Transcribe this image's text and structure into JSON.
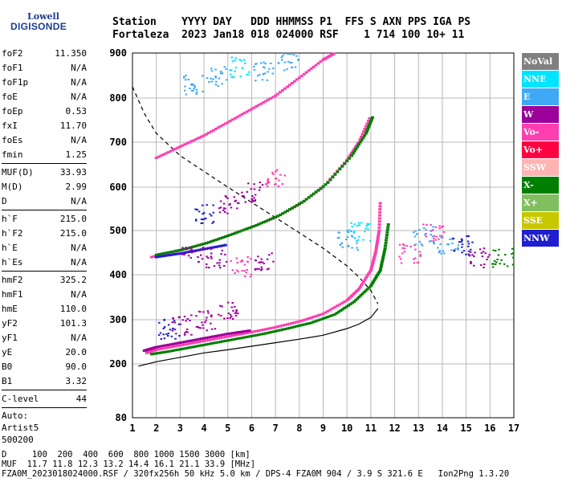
{
  "logo": {
    "line1": "Lowell",
    "line2": "DIGISONDE"
  },
  "header": {
    "line1": "Station    YYYY DAY   DDD HHMMSS P1  FFS S AXN PPS IGA PS",
    "line2": "Fortaleza  2023 Jan18 018 024000 RSF    1 714 100 10+ 11"
  },
  "params": {
    "group1": [
      {
        "label": "foF2",
        "value": "11.350"
      },
      {
        "label": "foF1",
        "value": "N/A"
      },
      {
        "label": "foF1p",
        "value": "N/A"
      },
      {
        "label": "foE",
        "value": "N/A"
      },
      {
        "label": "foEp",
        "value": "0.53"
      },
      {
        "label": "fxI",
        "value": "11.70"
      },
      {
        "label": "foEs",
        "value": "N/A"
      },
      {
        "label": "fmin",
        "value": "1.25"
      }
    ],
    "group2": [
      {
        "label": "MUF(D)",
        "value": "33.93"
      },
      {
        "label": "M(D)",
        "value": "2.99"
      },
      {
        "label": "D",
        "value": "N/A"
      }
    ],
    "group3": [
      {
        "label": "h`F",
        "value": "215.0"
      },
      {
        "label": "h`F2",
        "value": "215.0"
      },
      {
        "label": "h`E",
        "value": "N/A"
      },
      {
        "label": "h`Es",
        "value": "N/A"
      }
    ],
    "group4": [
      {
        "label": "hmF2",
        "value": "325.2"
      },
      {
        "label": "hmF1",
        "value": "N/A"
      },
      {
        "label": "hmE",
        "value": "110.0"
      },
      {
        "label": "yF2",
        "value": "101.3"
      },
      {
        "label": "yF1",
        "value": "N/A"
      },
      {
        "label": "yE",
        "value": "20.0"
      },
      {
        "label": "B0",
        "value": "90.0"
      },
      {
        "label": "B1",
        "value": "3.32"
      }
    ],
    "group5": [
      {
        "label": "C-level",
        "value": "44"
      }
    ],
    "auto": [
      "Auto:",
      "Artist5",
      "500200"
    ]
  },
  "legend": [
    {
      "label": "NoVal",
      "color": "#808080"
    },
    {
      "label": "NNE",
      "color": "#00e5ff"
    },
    {
      "label": "E",
      "color": "#3fa9f5"
    },
    {
      "label": "W",
      "color": "#9b009b"
    },
    {
      "label": "Vo-",
      "color": "#ff3fb0"
    },
    {
      "label": "Vo+",
      "color": "#ff0040"
    },
    {
      "label": "SSW",
      "color": "#ffb3b3"
    },
    {
      "label": "X-",
      "color": "#007f00"
    },
    {
      "label": "X+",
      "color": "#7fbf5f"
    },
    {
      "label": "SSE",
      "color": "#c8c800"
    },
    {
      "label": "NNW",
      "color": "#1f1fd0"
    }
  ],
  "footer": {
    "line1": "D     100  200  400  600  800 1000 1500 3000 [km]",
    "line2": "MUF  11.7 11.8 12.3 13.2 14.4 16.1 21.1 33.9 [MHz]",
    "line3": "FZA0M_2023018024000.RSF / 320fx256h 50 kHz 5.0 km / DPS-4 FZA0M 904 / 3.9 S 321.6 E   Ion2Png 1.3.20"
  },
  "chart_data": {
    "type": "scatter",
    "xlim": [
      1,
      17
    ],
    "ylim": [
      80,
      900
    ],
    "x_ticks": [
      1,
      2,
      3,
      4,
      5,
      6,
      7,
      8,
      9,
      10,
      11,
      12,
      13,
      14,
      15,
      16,
      17
    ],
    "y_ticks": [
      80,
      200,
      300,
      400,
      500,
      600,
      700,
      800,
      900
    ],
    "grid": true,
    "legend_position": "right",
    "profile_solid": [
      [
        1.25,
        195
      ],
      [
        2,
        205
      ],
      [
        3,
        215
      ],
      [
        4,
        225
      ],
      [
        5,
        232
      ],
      [
        6,
        240
      ],
      [
        7,
        248
      ],
      [
        8,
        256
      ],
      [
        9,
        265
      ],
      [
        10,
        280
      ],
      [
        10.5,
        290
      ],
      [
        11,
        305
      ],
      [
        11.3,
        325
      ]
    ],
    "profile_dashed": [
      [
        1,
        825
      ],
      [
        1.5,
        765
      ],
      [
        2,
        720
      ],
      [
        3,
        670
      ],
      [
        4,
        635
      ],
      [
        5,
        600
      ],
      [
        6,
        565
      ],
      [
        7,
        530
      ],
      [
        8,
        495
      ],
      [
        9,
        460
      ],
      [
        10,
        420
      ],
      [
        10.5,
        395
      ],
      [
        11,
        365
      ],
      [
        11.3,
        335
      ]
    ],
    "traces": [
      {
        "name": "O1",
        "color": "#ff3fb0",
        "points": [
          [
            1.6,
            225
          ],
          [
            2,
            232
          ],
          [
            3,
            242
          ],
          [
            4,
            252
          ],
          [
            5,
            262
          ],
          [
            6,
            272
          ],
          [
            7,
            283
          ],
          [
            8,
            296
          ],
          [
            9,
            313
          ],
          [
            10,
            343
          ],
          [
            10.5,
            368
          ],
          [
            11,
            410
          ],
          [
            11.2,
            450
          ],
          [
            11.35,
            500
          ],
          [
            11.4,
            570
          ]
        ]
      },
      {
        "name": "X1",
        "color": "#007f00",
        "points": [
          [
            1.8,
            222
          ],
          [
            2.5,
            228
          ],
          [
            3.5,
            238
          ],
          [
            4.5,
            248
          ],
          [
            5.5,
            258
          ],
          [
            6.5,
            268
          ],
          [
            7.5,
            280
          ],
          [
            8.5,
            293
          ],
          [
            9.5,
            312
          ],
          [
            10.3,
            340
          ],
          [
            11,
            375
          ],
          [
            11.4,
            410
          ],
          [
            11.6,
            460
          ],
          [
            11.75,
            520
          ]
        ]
      },
      {
        "name": "O2",
        "color": "#ff3fb0",
        "points": [
          [
            1.8,
            440
          ],
          [
            3,
            455
          ],
          [
            4,
            470
          ],
          [
            5,
            488
          ],
          [
            6,
            508
          ],
          [
            7,
            530
          ],
          [
            8,
            560
          ],
          [
            9,
            600
          ],
          [
            10,
            660
          ],
          [
            10.5,
            700
          ],
          [
            11,
            760
          ]
        ]
      },
      {
        "name": "X2",
        "color": "#007f00",
        "points": [
          [
            2,
            445
          ],
          [
            3.2,
            458
          ],
          [
            4.2,
            473
          ],
          [
            5.2,
            492
          ],
          [
            6.2,
            512
          ],
          [
            7.2,
            536
          ],
          [
            8.2,
            568
          ],
          [
            9.2,
            610
          ],
          [
            10.2,
            670
          ],
          [
            10.8,
            720
          ],
          [
            11.1,
            760
          ]
        ]
      },
      {
        "name": "O3",
        "color": "#ff3fb0",
        "points": [
          [
            2,
            665
          ],
          [
            3,
            690
          ],
          [
            4,
            715
          ],
          [
            5,
            745
          ],
          [
            6,
            775
          ],
          [
            7,
            805
          ],
          [
            8,
            845
          ],
          [
            9,
            885
          ],
          [
            9.5,
            900
          ]
        ]
      },
      {
        "name": "E1",
        "color": "#9b009b",
        "points": [
          [
            1.5,
            230
          ],
          [
            2,
            238
          ],
          [
            3,
            248
          ],
          [
            4,
            258
          ],
          [
            5,
            268
          ],
          [
            6,
            276
          ]
        ]
      },
      {
        "name": "W2",
        "color": "#1f1fd0",
        "points": [
          [
            2,
            440
          ],
          [
            3,
            448
          ],
          [
            4,
            458
          ],
          [
            5,
            468
          ]
        ]
      }
    ]
  }
}
